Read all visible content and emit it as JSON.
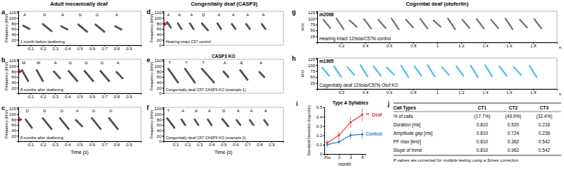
{
  "column_titles": [
    "Adult mecanically deaf",
    "Congenitally deaf (CASP3)",
    "Cogenital deaf (otoferlin)"
  ],
  "chart_data": [
    {
      "panel": "a",
      "type": "spectrogram",
      "subtitle": "1 month before deafening",
      "ylabel": "Frequency (kHz)",
      "color": "#333333",
      "xlim": [
        0,
        1
      ],
      "xticks": [
        0.1,
        0.2,
        0.3,
        0.4,
        0.5,
        0.6,
        0.7,
        0.8,
        0.9
      ],
      "ylim": [
        0,
        125
      ],
      "yticks": [
        20,
        40,
        60,
        80,
        100,
        120
      ],
      "syllables": {
        "labels": [
          "A",
          "G",
          "A",
          "G",
          "G",
          "A"
        ],
        "onset": [
          0.04,
          0.2,
          0.35,
          0.49,
          0.63,
          0.79
        ],
        "offset": [
          0.09,
          0.27,
          0.4,
          0.56,
          0.7,
          0.84
        ],
        "start_kHz": [
          72,
          78,
          70,
          76,
          76,
          70
        ],
        "end_kHz": [
          60,
          52,
          58,
          50,
          50,
          58
        ]
      }
    },
    {
      "panel": "b",
      "type": "spectrogram",
      "subtitle": "8 months after deafening",
      "ylabel": "Frequency (kHz)",
      "color": "#333333",
      "arrow_kHz": 80,
      "xlim": [
        0,
        1
      ],
      "xticks": [
        0.1,
        0.2,
        0.3,
        0.4,
        0.5,
        0.6,
        0.7,
        0.8,
        0.9
      ],
      "ylim": [
        0,
        125
      ],
      "yticks": [
        20,
        40,
        60,
        80,
        100,
        120
      ],
      "syllables": {
        "labels": [
          "M",
          "M",
          "A",
          "G",
          "G",
          "G",
          "A"
        ],
        "onset": [
          0.03,
          0.15,
          0.29,
          0.41,
          0.54,
          0.67,
          0.8
        ],
        "offset": [
          0.08,
          0.2,
          0.34,
          0.48,
          0.61,
          0.74,
          0.85
        ],
        "start_kHz": [
          85,
          85,
          80,
          82,
          82,
          82,
          78
        ],
        "end_kHz": [
          45,
          45,
          55,
          45,
          45,
          45,
          55
        ]
      }
    },
    {
      "panel": "c",
      "type": "spectrogram",
      "subtitle": "8 months after deafening",
      "ylabel": "Frequency (kHz)",
      "xlabel": "Time (s)",
      "color": "#333333",
      "arrow_kHz": 80,
      "xlim": [
        0,
        1
      ],
      "xticks": [
        0.1,
        0.2,
        0.3,
        0.4,
        0.5,
        0.6,
        0.7,
        0.8,
        0.9
      ],
      "ylim": [
        0,
        125
      ],
      "yticks": [
        20,
        40,
        60,
        80,
        100,
        120
      ],
      "syllables": {
        "labels": [
          "D",
          "G",
          "G",
          "A",
          "G",
          "G"
        ],
        "onset": [
          0.06,
          0.2,
          0.34,
          0.47,
          0.6,
          0.74
        ],
        "offset": [
          0.11,
          0.27,
          0.41,
          0.52,
          0.67,
          0.81
        ],
        "start_kHz": [
          80,
          85,
          85,
          78,
          85,
          85
        ],
        "end_kHz": [
          50,
          45,
          45,
          55,
          45,
          45
        ]
      }
    },
    {
      "panel": "d",
      "type": "spectrogram",
      "subtitle": "Hearing-intact C57 control",
      "ylabel": "Frequency (kHz)",
      "color": "#333333",
      "arrow_kHz": 78,
      "tick_labels": "y",
      "xlim": [
        0,
        1
      ],
      "ylim": [
        0,
        125
      ],
      "yticks": [
        0,
        20,
        40,
        60,
        80,
        100,
        120
      ],
      "syllables": {
        "labels": [
          "A",
          "A",
          "A",
          "D",
          "A",
          "A",
          "A",
          "A"
        ],
        "onset": [
          0.03,
          0.12,
          0.22,
          0.32,
          0.45,
          0.57,
          0.69,
          0.82
        ],
        "offset": [
          0.06,
          0.15,
          0.25,
          0.37,
          0.48,
          0.6,
          0.72,
          0.85
        ],
        "start_kHz": [
          85,
          80,
          80,
          80,
          80,
          78,
          78,
          78
        ],
        "end_kHz": [
          65,
          60,
          60,
          55,
          60,
          60,
          60,
          60
        ]
      }
    },
    {
      "panel": "e",
      "type": "spectrogram",
      "title": "CASP3 KO",
      "subtitle": "Congenitally deaf C57 CASP3 KO (example 1)",
      "ylabel": "Frequency (kHz)",
      "color": "#333333",
      "tick_labels": "y",
      "xlim": [
        0,
        1
      ],
      "ylim": [
        0,
        125
      ],
      "yticks": [
        0,
        20,
        40,
        60,
        80,
        100,
        120
      ],
      "syllables": {
        "labels": [
          "?",
          "?",
          "?",
          "A",
          "E",
          "A"
        ],
        "onset": [
          0.04,
          0.18,
          0.32,
          0.5,
          0.64,
          0.8
        ],
        "offset": [
          0.12,
          0.26,
          0.42,
          0.54,
          0.7,
          0.84
        ],
        "start_kHz": [
          90,
          90,
          90,
          80,
          85,
          78
        ],
        "end_kHz": [
          40,
          40,
          40,
          60,
          50,
          60
        ]
      }
    },
    {
      "panel": "f",
      "type": "spectrogram",
      "subtitle": "Congenitally deaf C57 CASP3 KO (example 2)",
      "ylabel": "Frequency (kHz)",
      "xlabel": "Time (s)",
      "color": "#333333",
      "xlim": [
        0,
        1
      ],
      "xticks": [
        0.1,
        0.2,
        0.3,
        0.4,
        0.5,
        0.6,
        0.7,
        0.8,
        0.9
      ],
      "ylim": [
        0,
        125
      ],
      "yticks": [
        0,
        20,
        40,
        60,
        80,
        100,
        120
      ],
      "syllables": {
        "labels": [
          "?",
          "A",
          "A",
          "A",
          "D",
          "A",
          "A",
          "A"
        ],
        "onset": [
          0.03,
          0.15,
          0.26,
          0.37,
          0.49,
          0.61,
          0.72,
          0.84
        ],
        "offset": [
          0.09,
          0.18,
          0.29,
          0.4,
          0.54,
          0.64,
          0.75,
          0.87
        ],
        "start_kHz": [
          85,
          80,
          80,
          80,
          82,
          78,
          78,
          78
        ],
        "end_kHz": [
          50,
          60,
          60,
          60,
          55,
          60,
          60,
          60
        ]
      }
    },
    {
      "panel": "g",
      "type": "spectrogram",
      "title": "m2098",
      "subtitle": "Hearing intact 129ola/C57N control",
      "ylabel": "kHz",
      "xlabel": "s",
      "color": "#555555",
      "xlim": [
        0,
        2
      ],
      "xticks": [
        0.2,
        0.4,
        0.6,
        0.8,
        1.0,
        1.2,
        1.4,
        1.6,
        1.8
      ],
      "ylim": [
        0,
        130
      ],
      "yticks": [
        25,
        50,
        75,
        100,
        125
      ],
      "syllables": {
        "onset": [
          0.05,
          0.16,
          0.27,
          0.39,
          0.51,
          0.62,
          0.74,
          0.86,
          0.97,
          1.09,
          1.21,
          1.33,
          1.45,
          1.57,
          1.69,
          1.81
        ],
        "offset": [
          0.11,
          0.22,
          0.33,
          0.45,
          0.57,
          0.68,
          0.8,
          0.92,
          1.03,
          1.15,
          1.27,
          1.39,
          1.51,
          1.63,
          1.75,
          1.87
        ],
        "start_kHz": [
          95,
          100,
          92,
          98,
          95,
          100,
          95,
          98,
          92,
          100,
          95,
          98,
          95,
          100,
          95,
          98
        ],
        "end_kHz": [
          60,
          55,
          65,
          58,
          60,
          55,
          62,
          58,
          65,
          55,
          60,
          58,
          60,
          55,
          62,
          58
        ]
      }
    },
    {
      "panel": "h",
      "type": "spectrogram",
      "title": "m1995",
      "subtitle": "Cogenitally deaf 129ola/C57N Otof KO",
      "ylabel": "kHz",
      "xlabel": "s",
      "color": "#29b6d6",
      "xlim": [
        0,
        2
      ],
      "xticks": [
        0.2,
        0.4,
        0.6,
        0.8,
        1.0,
        1.2,
        1.4,
        1.6,
        1.8
      ],
      "ylim": [
        0,
        130
      ],
      "yticks": [
        25,
        50,
        75,
        100,
        125
      ],
      "syllables": {
        "onset": [
          0.04,
          0.14,
          0.25,
          0.36,
          0.47,
          0.58,
          0.7,
          0.81,
          0.92,
          1.04,
          1.16,
          1.28,
          1.4,
          1.52,
          1.64,
          1.77
        ],
        "offset": [
          0.1,
          0.2,
          0.31,
          0.42,
          0.53,
          0.64,
          0.76,
          0.87,
          0.98,
          1.1,
          1.22,
          1.34,
          1.46,
          1.58,
          1.7,
          1.83
        ],
        "start_kHz": [
          90,
          95,
          92,
          100,
          95,
          90,
          98,
          95,
          100,
          92,
          95,
          98,
          100,
          95,
          92,
          98
        ],
        "end_kHz": [
          55,
          50,
          58,
          52,
          55,
          60,
          50,
          55,
          52,
          58,
          55,
          50,
          52,
          55,
          58,
          50
        ]
      }
    },
    {
      "panel": "i",
      "type": "line",
      "title": "Type A Syllables",
      "ylabel": "Standard Deviation (log ratio)",
      "xlabel": "month",
      "categories": [
        "Pre",
        "2",
        "3",
        "8"
      ],
      "ylim": [
        0,
        0.5
      ],
      "yticks": [
        0,
        0.1,
        0.2,
        0.3,
        0.4,
        0.5
      ],
      "marker": "circle",
      "annotation": "**",
      "series": [
        {
          "name": "Deaf",
          "color": "#e8393a",
          "values": [
            0.12,
            0.2,
            0.34,
            0.42
          ],
          "errors": [
            0.03,
            0.04,
            0.06,
            0.07
          ]
        },
        {
          "name": "Control",
          "color": "#2f7fc1",
          "values": [
            0.1,
            0.13,
            0.2,
            0.21
          ],
          "errors": [
            0.03,
            0.03,
            0.04,
            0.05
          ]
        }
      ]
    }
  ],
  "table": {
    "panel": "j",
    "header": [
      "Call Types",
      "CT1",
      "CT2",
      "CT3"
    ],
    "rows": [
      [
        "% of calls",
        "(17.7%)",
        "(49.9%)",
        "(32.4%)"
      ],
      [
        "Duration [ms]",
        "0.810",
        "0.520",
        "0.216"
      ],
      [
        "Amplitude gap [ms]",
        "0.810",
        "0.724",
        "0.236"
      ],
      [
        "PF max [kHz]",
        "0.810",
        "0.362",
        "0.542"
      ],
      [
        "Slope of trend",
        "0.810",
        "0.962",
        "0.542"
      ]
    ],
    "footnote": "P values are corrected for multiple testing using a Simes correction"
  }
}
